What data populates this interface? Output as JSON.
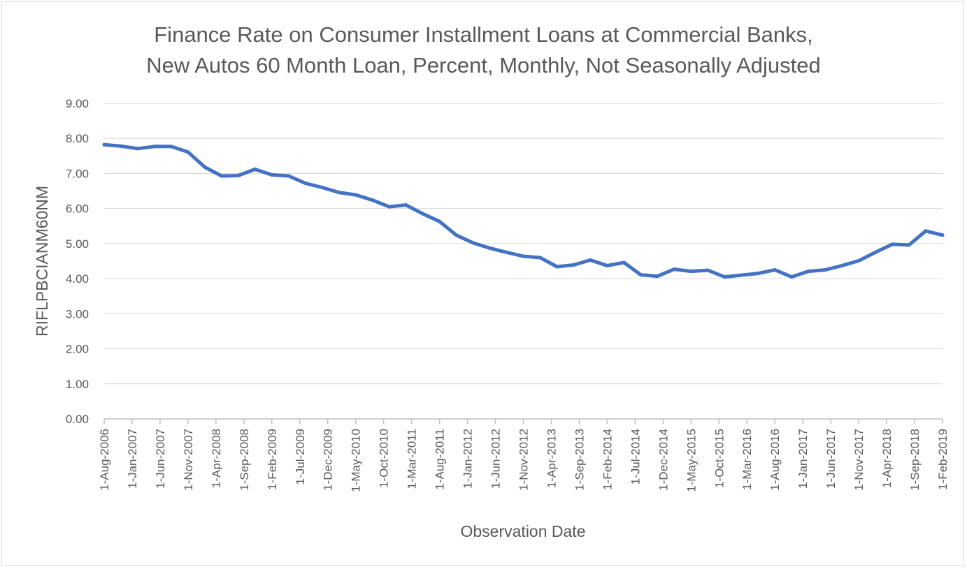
{
  "chart_data": {
    "type": "line",
    "title_line1": "Finance Rate on Consumer Installment Loans at Commercial Banks,",
    "title_line2": "New Autos 60 Month Loan, Percent, Monthly, Not Seasonally Adjusted",
    "xlabel": "Observation Date",
    "ylabel": "RIFLPBCIANM60NM",
    "ylim": [
      0,
      9
    ],
    "y_ticks": [
      "0.00",
      "1.00",
      "2.00",
      "3.00",
      "4.00",
      "5.00",
      "6.00",
      "7.00",
      "8.00",
      "9.00"
    ],
    "x_tick_labels": [
      "1-Aug-2006",
      "1-Jan-2007",
      "1-Jun-2007",
      "1-Nov-2007",
      "1-Apr-2008",
      "1-Sep-2008",
      "1-Feb-2009",
      "1-Jul-2009",
      "1-Dec-2009",
      "1-May-2010",
      "1-Oct-2010",
      "1-Mar-2011",
      "1-Aug-2011",
      "1-Jan-2012",
      "1-Jun-2012",
      "1-Nov-2012",
      "1-Apr-2013",
      "1-Sep-2013",
      "1-Feb-2014",
      "1-Jul-2014",
      "1-Dec-2014",
      "1-May-2015",
      "1-Oct-2015",
      "1-Mar-2016",
      "1-Aug-2016",
      "1-Jan-2017",
      "1-Jun-2017",
      "1-Nov-2017",
      "1-Apr-2018",
      "1-Sep-2018",
      "1-Feb-2019"
    ],
    "grid": true,
    "legend": "none",
    "line_color": "#4472c4",
    "series": [
      {
        "x": [
          "2006-08",
          "2006-11",
          "2007-02",
          "2007-05",
          "2007-08",
          "2007-11",
          "2008-02",
          "2008-05",
          "2008-08",
          "2008-11",
          "2009-02",
          "2009-05",
          "2009-08",
          "2009-11",
          "2010-02",
          "2010-05",
          "2010-08",
          "2010-11",
          "2011-02",
          "2011-05",
          "2011-08",
          "2011-11",
          "2012-02",
          "2012-05",
          "2012-08",
          "2012-11",
          "2013-02",
          "2013-05",
          "2013-08",
          "2013-11",
          "2014-02",
          "2014-05",
          "2014-08",
          "2014-11",
          "2015-02",
          "2015-05",
          "2015-08",
          "2015-11",
          "2016-02",
          "2016-05",
          "2016-08",
          "2016-11",
          "2017-02",
          "2017-05",
          "2017-08",
          "2017-11",
          "2018-02",
          "2018-05",
          "2018-08",
          "2018-11",
          "2019-02"
        ],
        "values": [
          7.82,
          7.78,
          7.71,
          7.77,
          7.77,
          7.61,
          7.18,
          6.93,
          6.94,
          7.12,
          6.96,
          6.93,
          6.72,
          6.6,
          6.46,
          6.39,
          6.24,
          6.05,
          6.1,
          5.85,
          5.63,
          5.24,
          5.02,
          4.87,
          4.75,
          4.64,
          4.6,
          4.34,
          4.39,
          4.53,
          4.37,
          4.46,
          4.11,
          4.07,
          4.27,
          4.21,
          4.24,
          4.05,
          4.1,
          4.15,
          4.25,
          4.05,
          4.21,
          4.25,
          4.37,
          4.51,
          4.75,
          4.98,
          4.96,
          5.36,
          5.24
        ]
      }
    ]
  }
}
